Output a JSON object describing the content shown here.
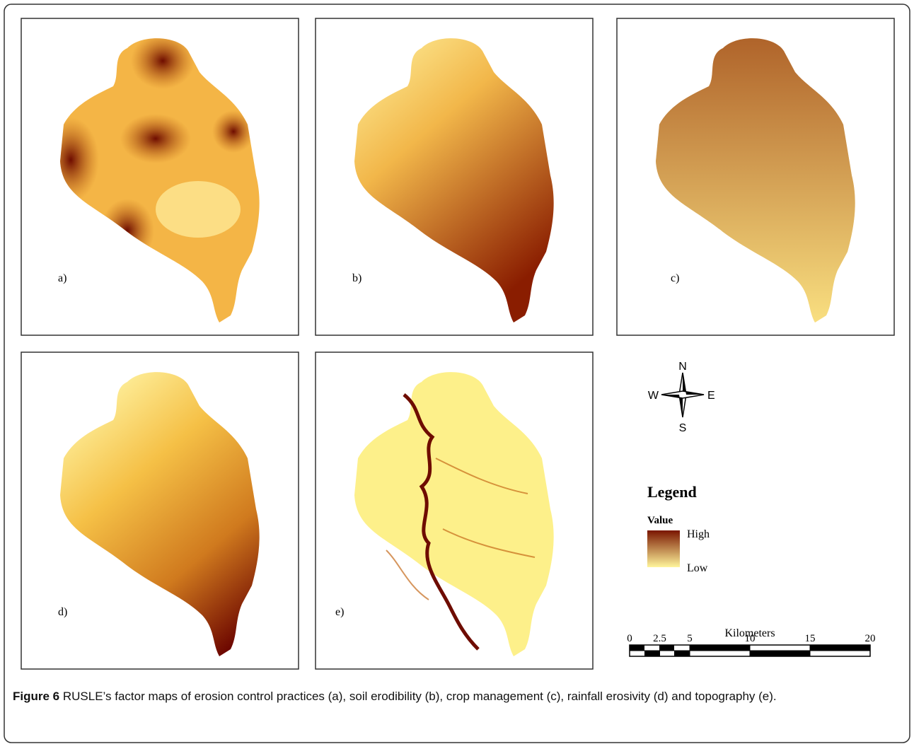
{
  "panels": [
    {
      "label": "a)"
    },
    {
      "label": "b)"
    },
    {
      "label": "c)"
    },
    {
      "label": "d)"
    },
    {
      "label": "e)"
    }
  ],
  "compass": {
    "north": "N",
    "east": "E",
    "south": "S",
    "west": "W"
  },
  "legend": {
    "title": "Legend",
    "field": "Value",
    "high": "High",
    "low": "Low"
  },
  "scale_bar": {
    "unit": "Kilometers",
    "ticks": [
      0,
      2.5,
      5,
      10,
      15,
      20
    ]
  },
  "caption": {
    "label": "Figure 6",
    "text": "RUSLE’s factor maps of erosion control practices (a), soil erodibility (b), crop management (c), rainfall erosivity (d) and topography (e)."
  }
}
